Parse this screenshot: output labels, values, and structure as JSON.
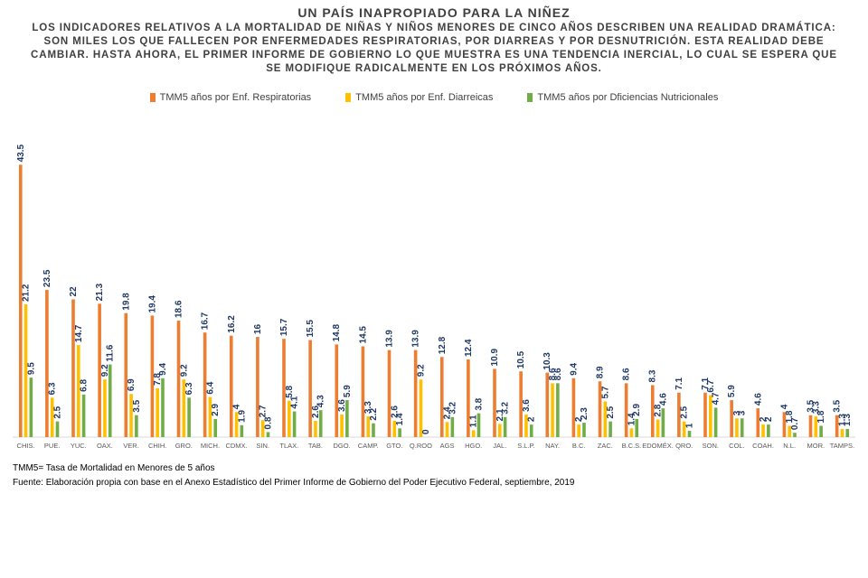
{
  "header": {
    "title": "UN PAÍS INAPROPIADO PARA LA NIÑEZ",
    "subtitle": "LOS INDICADORES RELATIVOS A LA MORTALIDAD DE NIÑAS Y NIÑOS MENORES DE CINCO AÑOS DESCRIBEN UNA REALIDAD DRAMÁTICA: SON MILES LOS QUE FALLECEN POR ENFERMEDADES RESPIRATORIAS, POR DIARREAS Y POR DESNUTRICIÓN. ESTA REALIDAD DEBE CAMBIAR. HASTA AHORA, EL PRIMER INFORME DE GOBIERNO LO QUE MUESTRA ES UNA TENDENCIA INERCIAL, LO CUAL SE ESPERA QUE SE MODIFIQUE RADICALMENTE EN LOS PRÓXIMOS AÑOS."
  },
  "legend": {
    "items": [
      {
        "label": "TMM5 años por Enf. Respiratorias",
        "color": "#ED7D31"
      },
      {
        "label": "TMM5 años por Enf. Diarreicas",
        "color": "#FFC000"
      },
      {
        "label": "TMM5 años por Dficiencias Nutricionales",
        "color": "#70AD47"
      }
    ]
  },
  "footer": {
    "note": "TMM5= Tasa de Mortalidad en Menores de 5 años",
    "source": "Fuente: Elaboración propia con base en el Anexo Estadístico del Primer Informe de Gobierno del Poder Ejecutivo Federal, septiembre, 2019"
  },
  "chart_data": {
    "type": "bar",
    "title": "",
    "xlabel": "",
    "ylabel": "",
    "ylim": [
      0,
      45
    ],
    "grid": false,
    "legend_position": "top",
    "label_color": "#1F3864",
    "categories": [
      "CHIS.",
      "PUE.",
      "YUC.",
      "OAX.",
      "VER.",
      "CHIH.",
      "GRO.",
      "MICH.",
      "CDMX.",
      "SIN.",
      "TLAX.",
      "TAB.",
      "DGO.",
      "CAMP.",
      "GTO.",
      "Q.ROO",
      "AGS",
      "HGO.",
      "JAL.",
      "S.L.P.",
      "NAY.",
      "B.C.",
      "ZAC.",
      "B.C.S.",
      "EDOMÉX.",
      "QRO.",
      "SON.",
      "COL.",
      "COAH.",
      "N.L.",
      "MOR.",
      "TAMPS."
    ],
    "series": [
      {
        "name": "TMM5 años por Enf. Respiratorias",
        "color": "#ED7D31",
        "values": [
          43.5,
          23.5,
          22,
          21.3,
          19.8,
          19.4,
          18.6,
          16.7,
          16.2,
          16,
          15.7,
          15.5,
          14.8,
          14.5,
          13.9,
          13.9,
          12.8,
          12.4,
          10.9,
          10.5,
          10.3,
          9.4,
          8.9,
          8.6,
          8.3,
          7.1,
          7.1,
          5.9,
          4.6,
          4,
          3.5,
          3.5
        ]
      },
      {
        "name": "TMM5 años por Enf. Diarreicas",
        "color": "#FFC000",
        "values": [
          21.2,
          6.3,
          14.7,
          9.2,
          6.9,
          7.8,
          9.2,
          6.4,
          4,
          2.7,
          5.8,
          2.6,
          3.6,
          3.3,
          2.6,
          9.2,
          2.4,
          1.1,
          2.1,
          3.6,
          8.6,
          2,
          5.7,
          1.4,
          2.8,
          2.5,
          6.7,
          3,
          2,
          1.8,
          3.3,
          1.3
        ]
      },
      {
        "name": "TMM5 años por Dficiencias Nutricionales",
        "color": "#70AD47",
        "values": [
          9.5,
          2.5,
          6.8,
          11.6,
          3.5,
          9.4,
          6.3,
          2.9,
          1.9,
          0.8,
          4.1,
          4.3,
          5.9,
          2.2,
          1.4,
          0,
          3.2,
          3.8,
          3.2,
          2,
          8.6,
          2.3,
          2.5,
          2.9,
          4.6,
          1,
          4.7,
          3,
          2,
          0.7,
          1.8,
          1.3
        ]
      }
    ]
  }
}
